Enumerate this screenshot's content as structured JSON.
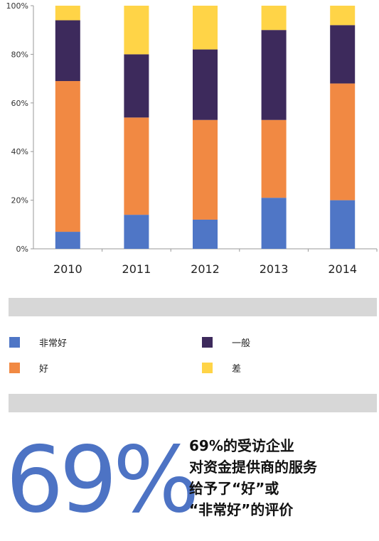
{
  "chart_data": {
    "type": "bar",
    "stacked": true,
    "categories": [
      "2010",
      "2011",
      "2012",
      "2013",
      "2014"
    ],
    "series": [
      {
        "name": "非常好",
        "color": "#4f76c6",
        "values": [
          7,
          14,
          12,
          21,
          20
        ]
      },
      {
        "name": "好",
        "color": "#f18943",
        "values": [
          62,
          40,
          41,
          32,
          48
        ]
      },
      {
        "name": "一般",
        "color": "#3d2a5c",
        "values": [
          25,
          26,
          29,
          37,
          24
        ]
      },
      {
        "name": "差",
        "color": "#ffd447",
        "values": [
          6,
          20,
          18,
          10,
          8
        ]
      }
    ],
    "ylim": [
      0,
      100
    ],
    "yticks": [
      "0%",
      "20%",
      "40%",
      "60%",
      "80%",
      "100%"
    ],
    "grid": false
  },
  "legend": [
    {
      "label": "非常好",
      "color": "#4f76c6",
      "icon": "blue-square"
    },
    {
      "label": "一般",
      "color": "#3d2a5c",
      "icon": "purple-square"
    },
    {
      "label": "好",
      "color": "#f18943",
      "icon": "orange-square"
    },
    {
      "label": "差",
      "color": "#ffd447",
      "icon": "yellow-square"
    }
  ],
  "highlight": {
    "number": "69%",
    "caption_lines": [
      "69%的受访企业",
      "对资金提供商的服务",
      "给予了“好”或",
      "“非常好”的评价"
    ]
  },
  "colors": {
    "band": "#d7d7d7",
    "big_number": "#4d73c4"
  }
}
